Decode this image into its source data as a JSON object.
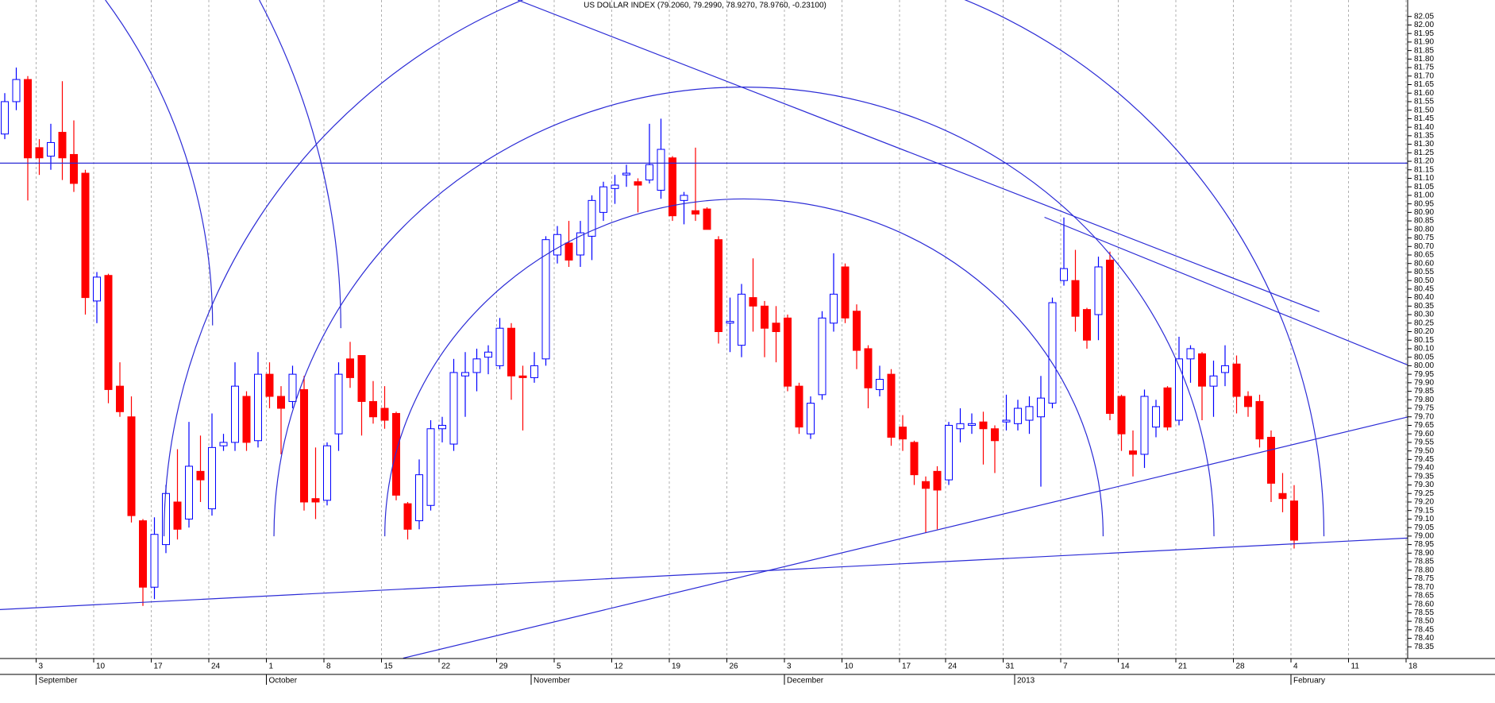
{
  "chart_data": {
    "type": "candlestick",
    "title": "US DOLLAR INDEX (79.2060, 79.2990, 78.9270, 78.9760, -0.23100)",
    "categories": [
      null,
      null,
      null,
      "3",
      null,
      null,
      null,
      null,
      "10",
      null,
      null,
      null,
      null,
      "17",
      null,
      null,
      null,
      null,
      "24",
      null,
      null,
      null,
      null,
      "1",
      null,
      null,
      null,
      null,
      "8",
      null,
      null,
      null,
      null,
      "15",
      null,
      null,
      null,
      null,
      "22",
      null,
      null,
      null,
      null,
      "29",
      null,
      null,
      null,
      null,
      "5",
      null,
      null,
      null,
      null,
      "12",
      null,
      null,
      null,
      null,
      "19",
      null,
      null,
      null,
      null,
      "26",
      null,
      null,
      null,
      null,
      "3",
      null,
      null,
      null,
      null,
      "10",
      null,
      null,
      null,
      null,
      "17",
      null,
      null,
      null,
      "24",
      null,
      null,
      null,
      null,
      "31",
      null,
      null,
      null,
      null,
      "7",
      null,
      null,
      null,
      null,
      "14",
      null,
      null,
      null,
      null,
      "21",
      null,
      null,
      null,
      null,
      "28",
      null,
      null,
      null,
      null,
      "4",
      null,
      null,
      null,
      null,
      "11",
      null,
      null,
      null,
      null,
      "18"
    ],
    "month_labels": [
      null,
      null,
      null,
      "September",
      null,
      null,
      null,
      null,
      null,
      null,
      null,
      null,
      null,
      null,
      null,
      null,
      null,
      null,
      null,
      null,
      null,
      null,
      null,
      "October",
      null,
      null,
      null,
      null,
      null,
      null,
      null,
      null,
      null,
      null,
      null,
      null,
      null,
      null,
      null,
      null,
      null,
      null,
      null,
      null,
      null,
      null,
      "November",
      null,
      null,
      null,
      null,
      null,
      null,
      null,
      null,
      null,
      null,
      null,
      null,
      null,
      null,
      null,
      null,
      null,
      null,
      null,
      null,
      null,
      "December",
      null,
      null,
      null,
      null,
      null,
      null,
      null,
      null,
      null,
      null,
      null,
      null,
      null,
      null,
      null,
      null,
      null,
      null,
      null,
      "2013",
      null,
      null,
      null,
      null,
      null,
      null,
      null,
      null,
      null,
      null,
      null,
      null,
      null,
      null,
      null,
      null,
      null,
      null,
      null,
      null,
      null,
      null,
      null,
      "February",
      null,
      null,
      null,
      null,
      null,
      null,
      null,
      null,
      null,
      null
    ],
    "open": [
      81.36,
      81.55,
      81.68,
      81.28,
      81.23,
      81.37,
      81.24,
      81.13,
      80.38,
      80.53,
      79.88,
      79.7,
      79.09,
      78.7,
      78.95,
      79.2,
      79.1,
      79.38,
      79.16,
      79.53,
      79.55,
      79.82,
      79.56,
      79.95,
      79.82,
      79.79,
      79.86,
      79.22,
      79.21,
      79.6,
      80.04,
      80.06,
      79.79,
      79.75,
      79.72,
      79.19,
      79.09,
      79.18,
      79.63,
      79.54,
      79.94,
      79.96,
      80.05,
      80.0,
      80.22,
      79.94,
      79.93,
      80.04,
      80.65,
      80.72,
      80.65,
      80.76,
      80.9,
      81.04,
      81.12,
      81.08,
      81.09,
      81.03,
      81.22,
      80.97,
      80.91,
      80.92,
      80.74,
      80.25,
      80.12,
      80.4,
      80.35,
      80.25,
      80.28,
      79.88,
      79.6,
      79.83,
      80.25,
      80.58,
      80.32,
      80.1,
      79.86,
      79.95,
      79.64,
      79.55,
      79.32,
      79.38,
      79.33,
      79.63,
      79.65,
      79.67,
      79.63,
      79.67,
      79.66,
      79.68,
      79.7,
      79.78,
      80.5,
      80.5,
      80.33,
      80.3,
      80.62,
      79.82,
      79.5,
      79.48,
      79.64,
      79.87,
      79.68,
      80.04,
      80.07,
      79.88,
      79.96,
      80.01,
      79.82,
      79.79,
      79.58,
      79.25,
      79.206,
      null,
      null,
      null,
      null,
      null,
      null,
      null,
      null,
      null,
      null
    ],
    "high": [
      81.6,
      81.75,
      81.7,
      81.33,
      81.42,
      81.67,
      81.44,
      81.15,
      80.55,
      80.54,
      80.02,
      79.82,
      79.1,
      79.11,
      79.3,
      79.51,
      79.67,
      79.59,
      79.72,
      79.6,
      80.02,
      79.85,
      80.08,
      80.02,
      79.88,
      80.0,
      79.94,
      79.52,
      79.55,
      80.02,
      80.14,
      80.06,
      79.91,
      79.88,
      79.73,
      79.2,
      79.45,
      79.68,
      79.7,
      80.04,
      80.08,
      80.1,
      80.12,
      80.28,
      80.25,
      80.0,
      80.08,
      80.76,
      80.82,
      80.85,
      80.85,
      81.0,
      81.08,
      81.12,
      81.18,
      81.1,
      81.42,
      81.45,
      81.23,
      81.02,
      81.28,
      80.93,
      80.76,
      80.4,
      80.48,
      80.63,
      80.38,
      80.35,
      80.3,
      79.9,
      79.82,
      80.32,
      80.66,
      80.6,
      80.36,
      80.12,
      80.0,
      79.98,
      79.71,
      79.56,
      79.35,
      79.41,
      79.67,
      79.75,
      79.72,
      79.73,
      79.65,
      79.83,
      79.8,
      79.82,
      79.94,
      80.4,
      80.87,
      80.68,
      80.34,
      80.64,
      80.67,
      79.83,
      79.62,
      79.86,
      79.8,
      79.88,
      80.17,
      80.12,
      80.08,
      80.03,
      80.12,
      80.06,
      79.85,
      79.83,
      79.62,
      79.37,
      79.299,
      null,
      null,
      null,
      null,
      null,
      null,
      null,
      null,
      null,
      null
    ],
    "low": [
      81.33,
      81.5,
      80.97,
      81.12,
      81.15,
      81.09,
      81.02,
      80.3,
      80.25,
      79.78,
      79.7,
      79.08,
      78.59,
      78.63,
      78.9,
      78.98,
      79.05,
      79.2,
      79.12,
      79.5,
      79.5,
      79.5,
      79.52,
      79.75,
      79.48,
      79.75,
      79.15,
      79.1,
      79.18,
      79.5,
      79.87,
      79.59,
      79.66,
      79.63,
      79.21,
      78.98,
      79.04,
      79.15,
      79.55,
      79.5,
      79.7,
      79.85,
      79.95,
      79.98,
      79.8,
      79.62,
      79.9,
      80.0,
      80.6,
      80.58,
      80.58,
      80.62,
      80.85,
      80.95,
      81.05,
      80.9,
      81.07,
      80.98,
      80.85,
      80.83,
      80.85,
      80.8,
      80.13,
      80.08,
      80.05,
      80.2,
      80.05,
      80.02,
      79.85,
      79.6,
      79.57,
      79.8,
      80.2,
      80.25,
      79.98,
      79.75,
      79.82,
      79.53,
      79.5,
      79.3,
      79.02,
      79.04,
      79.3,
      79.55,
      79.6,
      79.42,
      79.37,
      79.62,
      79.62,
      79.6,
      79.29,
      79.75,
      80.47,
      80.2,
      80.1,
      80.15,
      79.68,
      79.5,
      79.35,
      79.4,
      79.58,
      79.62,
      79.65,
      79.9,
      79.68,
      79.7,
      79.88,
      79.72,
      79.7,
      79.52,
      79.2,
      79.14,
      78.927,
      null,
      null,
      null,
      null,
      null,
      null,
      null,
      null,
      null,
      null
    ],
    "close": [
      81.55,
      81.68,
      81.22,
      81.22,
      81.31,
      81.22,
      81.07,
      80.4,
      80.52,
      79.86,
      79.73,
      79.12,
      78.7,
      79.01,
      79.25,
      79.04,
      79.41,
      79.33,
      79.52,
      79.55,
      79.88,
      79.55,
      79.95,
      79.82,
      79.75,
      79.95,
      79.2,
      79.2,
      79.53,
      79.95,
      79.93,
      79.79,
      79.7,
      79.68,
      79.24,
      79.04,
      79.36,
      79.63,
      79.65,
      79.96,
      79.96,
      80.04,
      80.08,
      80.22,
      79.94,
      79.93,
      80.0,
      80.74,
      80.77,
      80.62,
      80.78,
      80.97,
      81.05,
      81.06,
      81.13,
      81.06,
      81.18,
      81.27,
      80.88,
      81.0,
      80.89,
      80.8,
      80.2,
      80.26,
      80.42,
      80.35,
      80.22,
      80.2,
      79.88,
      79.64,
      79.78,
      80.28,
      80.42,
      80.28,
      80.09,
      79.87,
      79.92,
      79.58,
      79.57,
      79.36,
      79.28,
      79.27,
      79.65,
      79.66,
      79.66,
      79.63,
      79.56,
      79.68,
      79.75,
      79.76,
      79.81,
      80.37,
      80.57,
      80.29,
      80.15,
      80.58,
      79.72,
      79.6,
      79.48,
      79.82,
      79.76,
      79.64,
      80.04,
      80.1,
      79.88,
      79.94,
      80.0,
      79.82,
      79.76,
      79.57,
      79.31,
      79.22,
      78.976,
      null,
      null,
      null,
      null,
      null,
      null,
      null,
      null,
      null,
      null
    ],
    "up_color": "#0000ff",
    "down_color": "#ff0000",
    "ylim": [
      78.3,
      82.1
    ],
    "yticks": [
      82.05,
      {
        "value": 82,
        "label": "82.00"
      },
      81.95,
      {
        "value": 81.9,
        "label": "81.90"
      },
      81.85,
      {
        "value": 81.8,
        "label": "81.80"
      },
      81.75,
      {
        "value": 81.7,
        "label": "81.70"
      },
      81.65,
      {
        "value": 81.6,
        "label": "81.60"
      },
      81.55,
      {
        "value": 81.5,
        "label": "81.50"
      },
      81.45,
      {
        "value": 81.4,
        "label": "81.40"
      },
      81.35,
      {
        "value": 81.3,
        "label": "81.30"
      },
      81.25,
      {
        "value": 81.2,
        "label": "81.20"
      },
      81.15,
      {
        "value": 81.1,
        "label": "81.10"
      },
      81.05,
      {
        "value": 81,
        "label": "81.00"
      },
      80.95,
      {
        "value": 80.9,
        "label": "80.90"
      },
      80.85,
      {
        "value": 80.8,
        "label": "80.80"
      },
      80.75,
      {
        "value": 80.7,
        "label": "80.70"
      },
      80.65,
      {
        "value": 80.6,
        "label": "80.60"
      },
      80.55,
      {
        "value": 80.5,
        "label": "80.50"
      },
      80.45,
      {
        "value": 80.4,
        "label": "80.40"
      },
      80.35,
      {
        "value": 80.3,
        "label": "80.30"
      },
      80.25,
      {
        "value": 80.2,
        "label": "80.20"
      },
      80.15,
      {
        "value": 80.1,
        "label": "80.10"
      },
      80.05,
      {
        "value": 80,
        "label": "80.00"
      },
      79.95,
      {
        "value": 79.9,
        "label": "79.90"
      },
      79.85,
      {
        "value": 79.8,
        "label": "79.80"
      },
      79.75,
      {
        "value": 79.7,
        "label": "79.70"
      },
      79.65,
      {
        "value": 79.6,
        "label": "79.60"
      },
      79.55,
      {
        "value": 79.5,
        "label": "79.50"
      },
      79.45,
      {
        "value": 79.4,
        "label": "79.40"
      },
      79.35,
      {
        "value": 79.3,
        "label": "79.30"
      },
      79.25,
      {
        "value": 79.2,
        "label": "79.20"
      },
      79.15,
      {
        "value": 79.1,
        "label": "79.10"
      },
      79.05,
      {
        "value": 79,
        "label": "79.00"
      },
      78.95,
      {
        "value": 78.9,
        "label": "78.90"
      },
      78.85,
      {
        "value": 78.8,
        "label": "78.80"
      },
      78.75,
      {
        "value": 78.7,
        "label": "78.70"
      },
      78.65,
      {
        "value": 78.6,
        "label": "78.60"
      },
      78.55,
      {
        "value": 78.5,
        "label": "78.50"
      },
      78.45,
      {
        "value": 78.4,
        "label": "78.40"
      },
      78.35
    ],
    "x_grid": true
  }
}
